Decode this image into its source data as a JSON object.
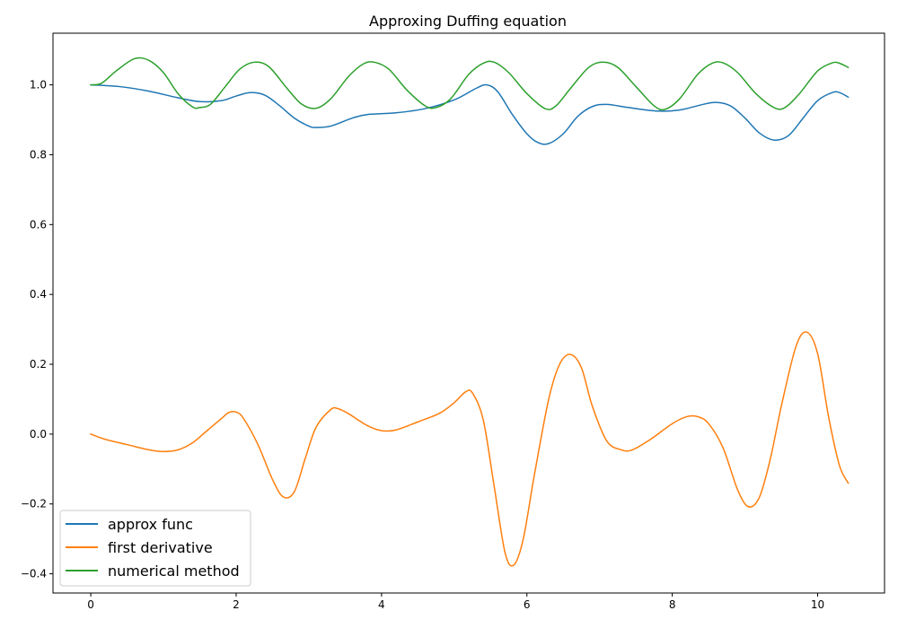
{
  "chart_data": {
    "type": "line",
    "title": "Approxing Duffing equation",
    "xlabel": "",
    "ylabel": "",
    "xlim": [
      -0.52,
      10.92
    ],
    "ylim": [
      -0.455,
      1.148
    ],
    "xticks": [
      0,
      2,
      4,
      6,
      8,
      10
    ],
    "xtick_labels": [
      "0",
      "2",
      "4",
      "6",
      "8",
      "10"
    ],
    "yticks": [
      -0.4,
      -0.2,
      0.0,
      0.2,
      0.4,
      0.6,
      0.8,
      1.0
    ],
    "ytick_labels": [
      "−0.4",
      "−0.2",
      "0.0",
      "0.2",
      "0.4",
      "0.6",
      "0.8",
      "1.0"
    ],
    "grid": false,
    "legend_position": "lower-left",
    "series": [
      {
        "name": "approx func",
        "color": "#1f77b4",
        "points": [
          [
            0,
            1.0
          ],
          [
            0.4,
            0.995
          ],
          [
            0.8,
            0.982
          ],
          [
            1.2,
            0.963
          ],
          [
            1.5,
            0.952
          ],
          [
            1.8,
            0.955
          ],
          [
            2.0,
            0.968
          ],
          [
            2.2,
            0.978
          ],
          [
            2.4,
            0.97
          ],
          [
            2.6,
            0.94
          ],
          [
            2.8,
            0.905
          ],
          [
            3.0,
            0.882
          ],
          [
            3.1,
            0.878
          ],
          [
            3.3,
            0.882
          ],
          [
            3.6,
            0.905
          ],
          [
            3.8,
            0.915
          ],
          [
            4.2,
            0.92
          ],
          [
            4.6,
            0.932
          ],
          [
            5.0,
            0.957
          ],
          [
            5.3,
            0.99
          ],
          [
            5.45,
            1.0
          ],
          [
            5.6,
            0.98
          ],
          [
            5.8,
            0.915
          ],
          [
            6.0,
            0.86
          ],
          [
            6.15,
            0.835
          ],
          [
            6.3,
            0.832
          ],
          [
            6.5,
            0.86
          ],
          [
            6.7,
            0.91
          ],
          [
            6.9,
            0.938
          ],
          [
            7.1,
            0.944
          ],
          [
            7.4,
            0.935
          ],
          [
            7.8,
            0.925
          ],
          [
            8.1,
            0.928
          ],
          [
            8.4,
            0.943
          ],
          [
            8.6,
            0.95
          ],
          [
            8.8,
            0.94
          ],
          [
            9.0,
            0.905
          ],
          [
            9.2,
            0.862
          ],
          [
            9.4,
            0.842
          ],
          [
            9.6,
            0.855
          ],
          [
            9.8,
            0.905
          ],
          [
            10.0,
            0.955
          ],
          [
            10.2,
            0.978
          ],
          [
            10.3,
            0.978
          ],
          [
            10.42,
            0.965
          ]
        ]
      },
      {
        "name": "first derivative",
        "color": "#ff7f0e",
        "points": [
          [
            0,
            0.0
          ],
          [
            0.2,
            -0.015
          ],
          [
            0.5,
            -0.03
          ],
          [
            0.8,
            -0.045
          ],
          [
            1.0,
            -0.05
          ],
          [
            1.2,
            -0.045
          ],
          [
            1.4,
            -0.025
          ],
          [
            1.6,
            0.01
          ],
          [
            1.8,
            0.045
          ],
          [
            1.9,
            0.062
          ],
          [
            2.0,
            0.063
          ],
          [
            2.1,
            0.045
          ],
          [
            2.3,
            -0.03
          ],
          [
            2.5,
            -0.13
          ],
          [
            2.65,
            -0.18
          ],
          [
            2.8,
            -0.165
          ],
          [
            2.95,
            -0.07
          ],
          [
            3.1,
            0.02
          ],
          [
            3.3,
            0.07
          ],
          [
            3.4,
            0.073
          ],
          [
            3.55,
            0.058
          ],
          [
            3.8,
            0.025
          ],
          [
            4.0,
            0.01
          ],
          [
            4.2,
            0.012
          ],
          [
            4.5,
            0.035
          ],
          [
            4.8,
            0.06
          ],
          [
            5.0,
            0.09
          ],
          [
            5.15,
            0.12
          ],
          [
            5.25,
            0.118
          ],
          [
            5.4,
            0.04
          ],
          [
            5.55,
            -0.15
          ],
          [
            5.7,
            -0.34
          ],
          [
            5.82,
            -0.375
          ],
          [
            5.95,
            -0.3
          ],
          [
            6.1,
            -0.12
          ],
          [
            6.3,
            0.1
          ],
          [
            6.45,
            0.2
          ],
          [
            6.6,
            0.228
          ],
          [
            6.75,
            0.19
          ],
          [
            6.9,
            0.08
          ],
          [
            7.1,
            -0.02
          ],
          [
            7.3,
            -0.045
          ],
          [
            7.45,
            -0.045
          ],
          [
            7.7,
            -0.015
          ],
          [
            8.0,
            0.03
          ],
          [
            8.2,
            0.05
          ],
          [
            8.35,
            0.05
          ],
          [
            8.5,
            0.03
          ],
          [
            8.7,
            -0.04
          ],
          [
            8.9,
            -0.16
          ],
          [
            9.05,
            -0.208
          ],
          [
            9.2,
            -0.18
          ],
          [
            9.35,
            -0.07
          ],
          [
            9.5,
            0.08
          ],
          [
            9.7,
            0.25
          ],
          [
            9.85,
            0.292
          ],
          [
            10.0,
            0.23
          ],
          [
            10.15,
            0.05
          ],
          [
            10.3,
            -0.09
          ],
          [
            10.42,
            -0.14
          ]
        ]
      },
      {
        "name": "numerical method",
        "color": "#2ca02c",
        "points": [
          [
            0,
            1.0
          ],
          [
            0.15,
            1.005
          ],
          [
            0.35,
            1.04
          ],
          [
            0.6,
            1.075
          ],
          [
            0.8,
            1.07
          ],
          [
            1.0,
            1.035
          ],
          [
            1.2,
            0.975
          ],
          [
            1.4,
            0.937
          ],
          [
            1.5,
            0.935
          ],
          [
            1.65,
            0.945
          ],
          [
            1.85,
            0.995
          ],
          [
            2.05,
            1.045
          ],
          [
            2.25,
            1.065
          ],
          [
            2.45,
            1.052
          ],
          [
            2.7,
            0.99
          ],
          [
            2.9,
            0.945
          ],
          [
            3.1,
            0.933
          ],
          [
            3.3,
            0.96
          ],
          [
            3.55,
            1.025
          ],
          [
            3.75,
            1.06
          ],
          [
            3.9,
            1.065
          ],
          [
            4.1,
            1.045
          ],
          [
            4.35,
            0.985
          ],
          [
            4.6,
            0.94
          ],
          [
            4.75,
            0.935
          ],
          [
            4.95,
            0.96
          ],
          [
            5.2,
            1.03
          ],
          [
            5.4,
            1.062
          ],
          [
            5.55,
            1.065
          ],
          [
            5.75,
            1.035
          ],
          [
            6.0,
            0.975
          ],
          [
            6.25,
            0.932
          ],
          [
            6.4,
            0.94
          ],
          [
            6.6,
            0.99
          ],
          [
            6.85,
            1.05
          ],
          [
            7.05,
            1.065
          ],
          [
            7.25,
            1.05
          ],
          [
            7.5,
            0.995
          ],
          [
            7.75,
            0.94
          ],
          [
            7.9,
            0.93
          ],
          [
            8.1,
            0.96
          ],
          [
            8.35,
            1.03
          ],
          [
            8.55,
            1.062
          ],
          [
            8.7,
            1.063
          ],
          [
            8.9,
            1.035
          ],
          [
            9.15,
            0.975
          ],
          [
            9.4,
            0.935
          ],
          [
            9.55,
            0.935
          ],
          [
            9.75,
            0.975
          ],
          [
            10.0,
            1.04
          ],
          [
            10.2,
            1.063
          ],
          [
            10.3,
            1.062
          ],
          [
            10.42,
            1.05
          ]
        ]
      }
    ]
  }
}
